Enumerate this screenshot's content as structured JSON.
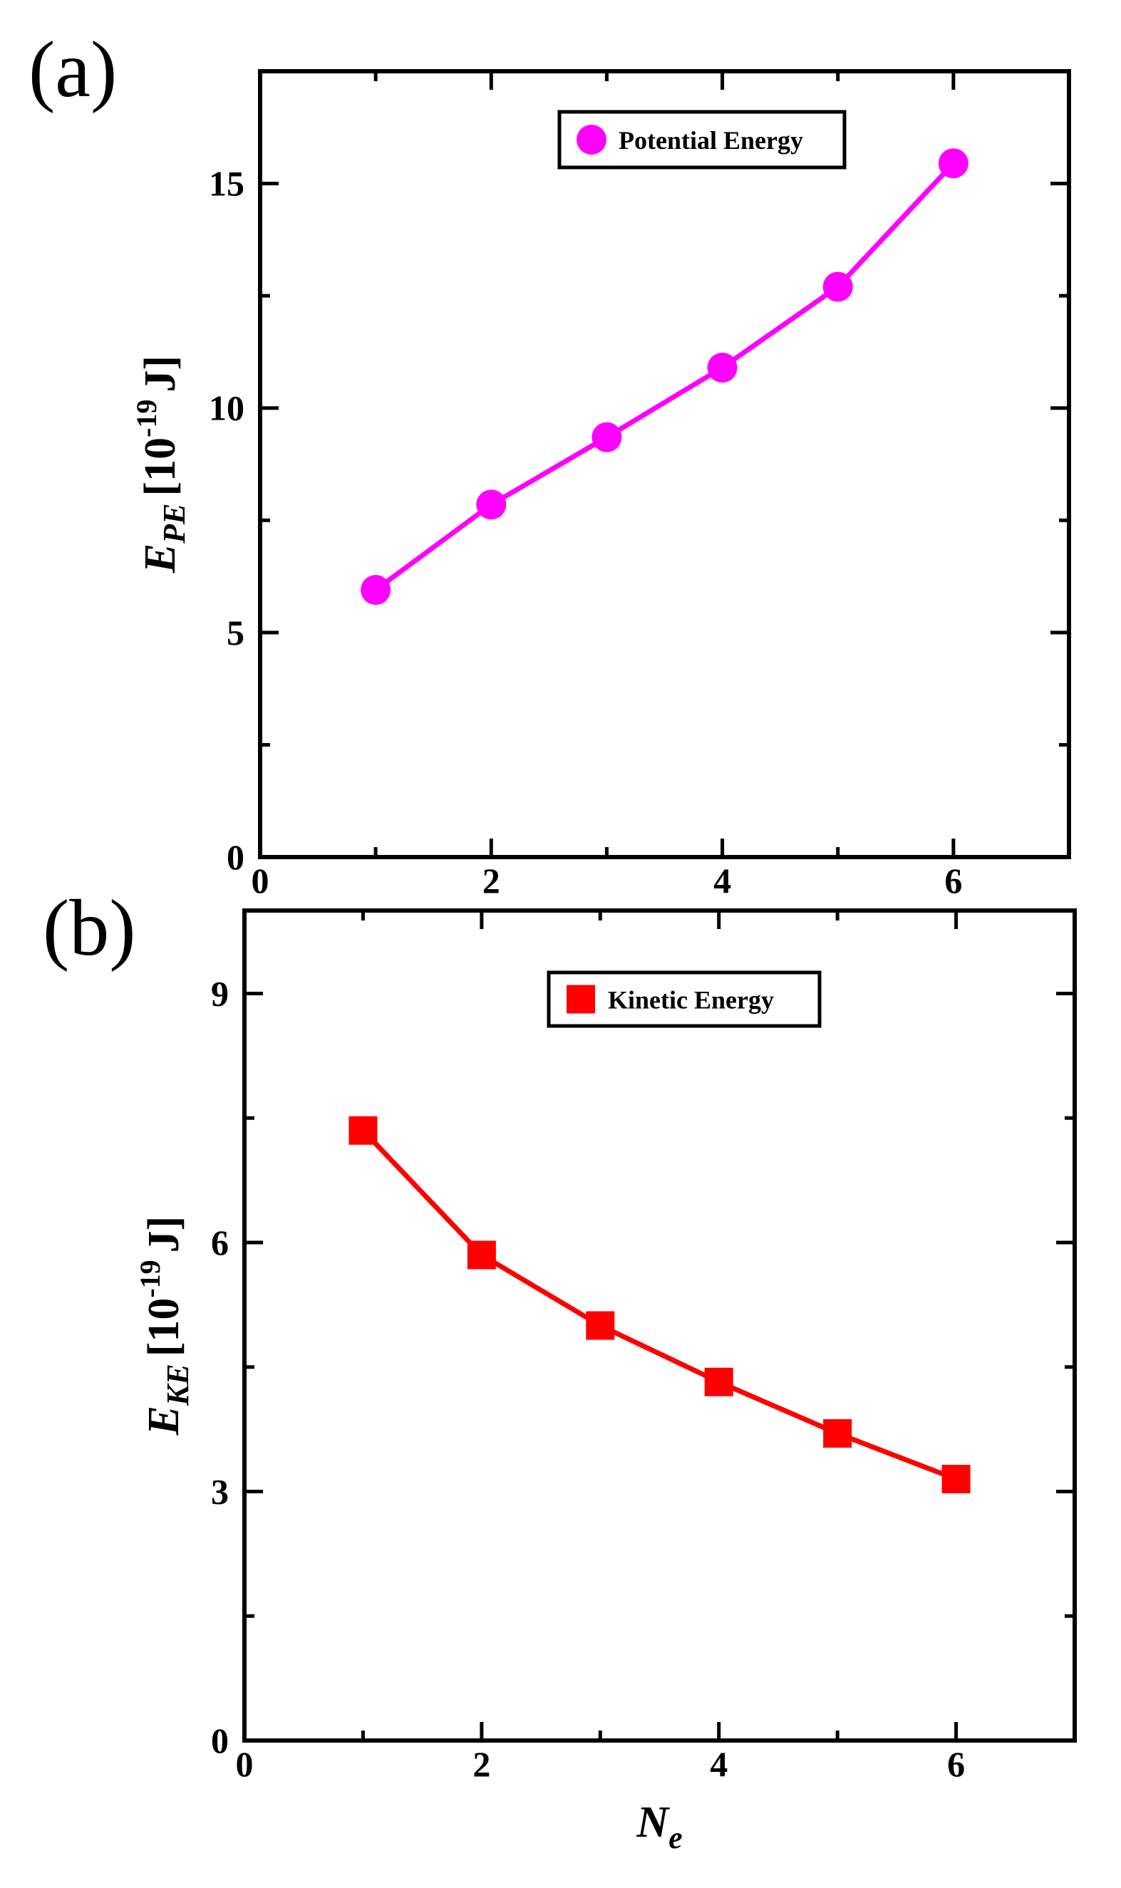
{
  "chart_data": [
    {
      "type": "line",
      "panel_label": "(a)",
      "x": [
        1,
        2,
        3,
        4,
        5,
        6
      ],
      "series": [
        {
          "name": "Potential Energy",
          "values": [
            5.95,
            7.85,
            9.35,
            10.9,
            12.7,
            15.45
          ],
          "color": "#ff00ff",
          "marker": "circle"
        }
      ],
      "xlim": [
        0,
        7
      ],
      "ylim": [
        0,
        17.5
      ],
      "xticks": [
        0,
        2,
        4,
        6
      ],
      "xticks_minor": [
        1,
        3,
        5
      ],
      "yticks": [
        0,
        5,
        10,
        15
      ],
      "yticks_minor": [
        2.5,
        7.5,
        12.5,
        17.5
      ],
      "xtick_labels": [
        "0",
        "2",
        "4",
        "6"
      ],
      "ytick_labels": [
        "0",
        "5",
        "10",
        "15"
      ],
      "ylabel": {
        "main": "E",
        "sub": "PE",
        "bracket_open": "[10",
        "sup": "-19",
        "unit": "J]"
      },
      "xlabel": null,
      "legend": {
        "position": "top-center",
        "label": "Potential Energy"
      },
      "grid": false
    },
    {
      "type": "line",
      "panel_label": "(b)",
      "x": [
        1,
        2,
        3,
        4,
        5,
        6
      ],
      "series": [
        {
          "name": "Kinetic Energy",
          "values": [
            7.35,
            5.85,
            5.0,
            4.32,
            3.7,
            3.15
          ],
          "color": "#ff0000",
          "marker": "square"
        }
      ],
      "xlim": [
        0,
        7
      ],
      "ylim": [
        0,
        10
      ],
      "xticks": [
        0,
        2,
        4,
        6
      ],
      "xticks_minor": [
        1,
        3,
        5
      ],
      "yticks": [
        0,
        3,
        6,
        9
      ],
      "yticks_minor": [
        1.5,
        4.5,
        7.5
      ],
      "xtick_labels": [
        "0",
        "2",
        "4",
        "6"
      ],
      "ytick_labels": [
        "0",
        "3",
        "6",
        "9"
      ],
      "ylabel": {
        "main": "E",
        "sub": "KE",
        "bracket_open": "[10",
        "sup": "-19",
        "unit": "J]"
      },
      "xlabel": {
        "main": "N",
        "sub": "e"
      },
      "legend": {
        "position": "top-center",
        "label": "Kinetic Energy"
      },
      "grid": false
    }
  ]
}
